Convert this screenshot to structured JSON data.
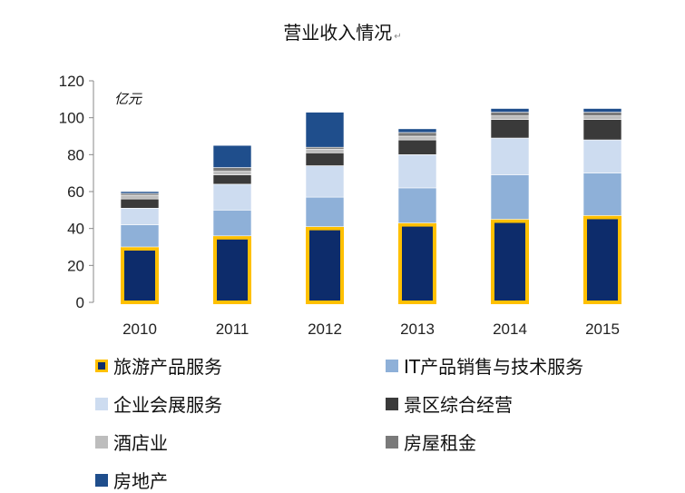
{
  "title": "营业收入情况",
  "title_mark": "↵",
  "chart_data": {
    "type": "bar",
    "stacked": true,
    "categories": [
      "2010",
      "2011",
      "2012",
      "2013",
      "2014",
      "2015"
    ],
    "ylim": [
      0,
      120
    ],
    "yticks": [
      "0",
      "20",
      "40",
      "60",
      "80",
      "100",
      "120"
    ],
    "ylabel": "亿元",
    "legend_position": "bottom",
    "series": [
      {
        "name": "旅游产品服务",
        "color": "#0d2c6b",
        "border": "#ffc000",
        "values": [
          30,
          36,
          41,
          43,
          45,
          47
        ]
      },
      {
        "name": "IT产品销售与技术服务",
        "color": "#8eb0d8",
        "values": [
          12,
          14,
          16,
          19,
          24,
          23
        ]
      },
      {
        "name": "企业会展服务",
        "color": "#cddcf0",
        "values": [
          9,
          14,
          17,
          18,
          20,
          18
        ]
      },
      {
        "name": "景区综合经营",
        "color": "#3a3a3a",
        "values": [
          5,
          5,
          7,
          8,
          10,
          11
        ]
      },
      {
        "name": "酒店业",
        "color": "#bdbdbd",
        "values": [
          2,
          2,
          2,
          2,
          2,
          2
        ]
      },
      {
        "name": "房屋租金",
        "color": "#7a7a7a",
        "values": [
          1,
          2,
          1,
          2,
          2,
          2
        ]
      },
      {
        "name": "房地产",
        "color": "#1f4e8c",
        "values": [
          1,
          12,
          19,
          2,
          2,
          2
        ]
      }
    ]
  }
}
